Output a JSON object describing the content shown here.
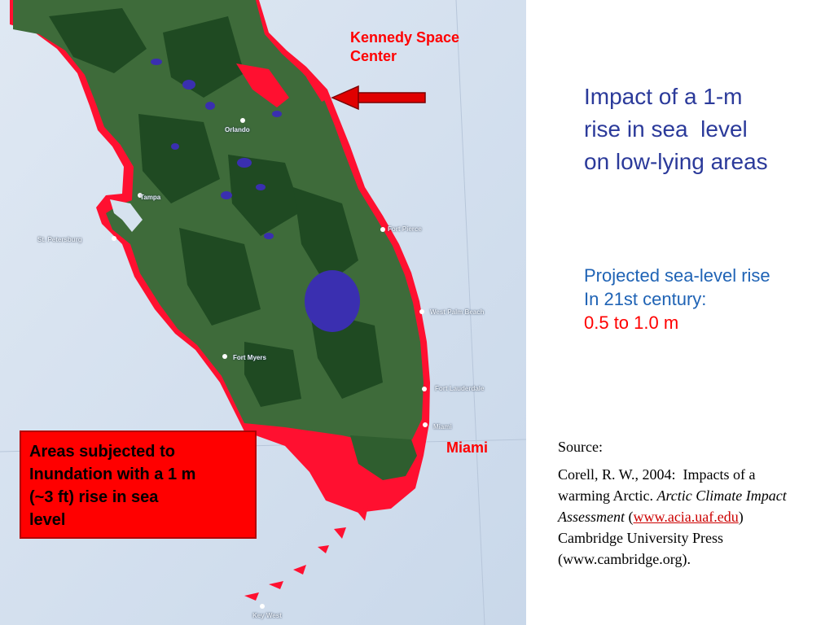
{
  "map": {
    "callouts": {
      "kennedy_line1": "Kennedy Space",
      "kennedy_line2": "Center",
      "miami": "Miami"
    },
    "cities": {
      "orlando": "Orlando",
      "tampa": "Tampa",
      "st_petersburg": "St. Petersburg",
      "fort_pierce": "Fort Pierce",
      "west_palm_beach": "West Palm Beach",
      "fort_myers": "Fort Myers",
      "fort_lauderdale": "Fort Lauderdale",
      "miami_small": "Miami",
      "key_west": "Key West"
    },
    "legend": {
      "line1": "Areas subjected to",
      "line2": "Inundation with a 1 m",
      "line3": "(~3 ft) rise in sea",
      "line4": "level"
    },
    "colors": {
      "sea": "#d6e2ef",
      "land": "#3e6b3a",
      "forest": "#1f4a22",
      "lake": "#3a2fb0",
      "inundation": "#ff1030",
      "arrow": "#e00000"
    }
  },
  "title": {
    "line1": "Impact of a 1-m",
    "line2": "rise in sea  level",
    "line3": "on low-lying areas"
  },
  "projection": {
    "line1": "Projected sea-level rise",
    "line2": "In 21st century:",
    "line3": "0.5 to 1.0 m"
  },
  "source": {
    "label": "Source:",
    "text1": "Corell, R. W., 2004:  Impacts of a warming Arctic.",
    "italic": "Arctic Climate Impact Assessment",
    "paren_open": "(",
    "link": "www.acia.uaf.edu",
    "text2": ") Cambridge University Press (www.cambridge.org)."
  }
}
